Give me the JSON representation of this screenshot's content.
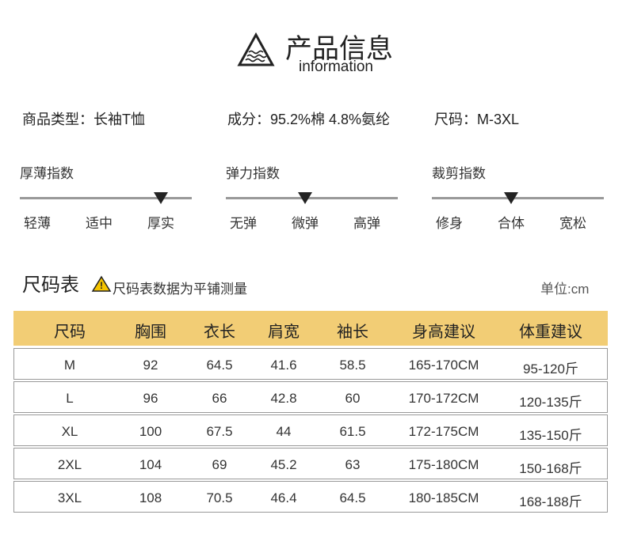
{
  "header": {
    "title": "产品信息",
    "subtitle": "information"
  },
  "attributes": [
    "商品类型：长袖T恤",
    "成分：95.2%棉 4.8%氨纶",
    "尺码：M-3XL"
  ],
  "scales": [
    {
      "title": "厚薄指数",
      "options": [
        "轻薄",
        "适中",
        "厚实"
      ],
      "selected": 2
    },
    {
      "title": "弹力指数",
      "options": [
        "无弹",
        "微弹",
        "高弹"
      ],
      "selected": 1
    },
    {
      "title": "裁剪指数",
      "options": [
        "修身",
        "合体",
        "宽松"
      ],
      "selected": 1
    }
  ],
  "size_table": {
    "title": "尺码表",
    "note": "尺码表数据为平铺测量",
    "unit": "单位:cm",
    "columns": [
      "尺码",
      "胸围",
      "衣长",
      "肩宽",
      "袖长",
      "身高建议",
      "体重建议"
    ],
    "rows": [
      [
        "M",
        "92",
        "64.5",
        "41.6",
        "58.5",
        "165-170CM",
        "95-120斤"
      ],
      [
        "L",
        "96",
        "66",
        "42.8",
        "60",
        "170-172CM",
        "120-135斤"
      ],
      [
        "XL",
        "100",
        "67.5",
        "44",
        "61.5",
        "172-175CM",
        "135-150斤"
      ],
      [
        "2XL",
        "104",
        "69",
        "45.2",
        "63",
        "175-180CM",
        "150-168斤"
      ],
      [
        "3XL",
        "108",
        "70.5",
        "46.4",
        "64.5",
        "180-185CM",
        "168-188斤"
      ]
    ]
  }
}
